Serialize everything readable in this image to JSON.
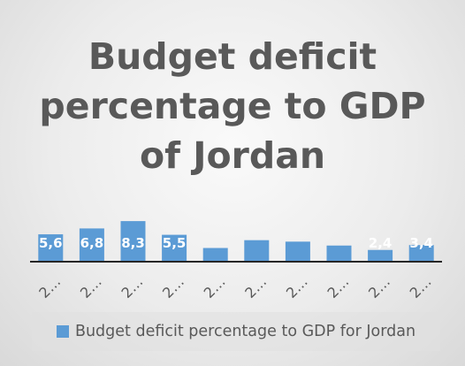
{
  "chart_data": {
    "type": "bar",
    "title": "Budget deficit percentage to GDP of Jordan",
    "categories": [
      "2…",
      "2…",
      "2…",
      "2…",
      "2…",
      "2…",
      "2…",
      "2…",
      "2…",
      "2…"
    ],
    "series": [
      {
        "name": "Budget deficit percentage to GDP for Jordan",
        "values": [
          5.6,
          6.8,
          8.3,
          5.5,
          2.8,
          4.4,
          4.1,
          3.3,
          2.4,
          3.4
        ],
        "data_labels": [
          "5,6",
          "6,8",
          "8,3",
          "5,5",
          "",
          "",
          "",
          "",
          "2,4",
          "3,4"
        ],
        "color": "#5b9bd5"
      }
    ],
    "ylim": [
      0,
      8.5
    ],
    "grid": false,
    "legend": "bottom",
    "label_color": "#ffffff",
    "axis_color": "#262626",
    "tick_color": "#595959"
  }
}
